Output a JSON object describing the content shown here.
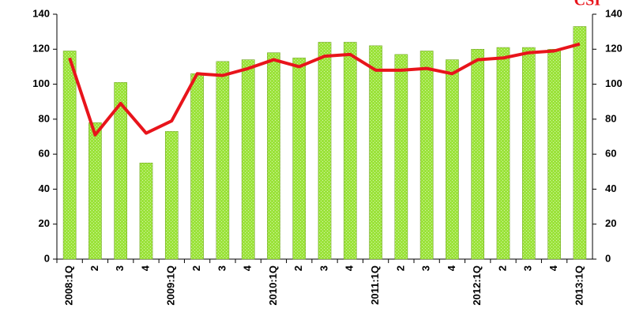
{
  "chart_data": {
    "type": "bar-line",
    "categories": [
      "2008:1Q",
      "2",
      "3",
      "4",
      "2009:1Q",
      "2",
      "3",
      "4",
      "2010:1Q",
      "2",
      "3",
      "4",
      "2011:1Q",
      "2",
      "3",
      "4",
      "2012:1Q",
      "2",
      "3",
      "4",
      "2013:1Q"
    ],
    "series": [
      {
        "type": "bar",
        "color": "#9be33a",
        "values": [
          119,
          78,
          101,
          55,
          73,
          106,
          113,
          114,
          118,
          115,
          124,
          124,
          122,
          117,
          119,
          114,
          120,
          121,
          121,
          120,
          133
        ]
      },
      {
        "type": "line",
        "name": "CSI",
        "color": "#e8141b",
        "axis": "y2",
        "values": [
          115,
          71,
          89,
          72,
          79,
          106,
          105,
          109,
          114,
          110,
          116,
          117,
          108,
          108,
          109,
          106,
          114,
          115,
          118,
          119,
          123
        ]
      }
    ],
    "ylim": [
      0,
      140
    ],
    "yticks": [
      0,
      20,
      40,
      60,
      80,
      100,
      120,
      140
    ],
    "y2lim": [
      0,
      140
    ],
    "y2ticks": [
      0,
      20,
      40,
      60,
      80,
      100,
      120,
      140
    ]
  }
}
